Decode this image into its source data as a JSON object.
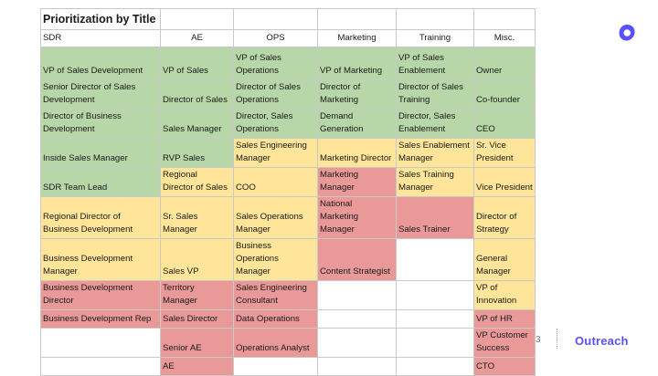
{
  "table": {
    "title": "Prioritization by Title",
    "headers": [
      "SDR",
      "AE",
      "OPS",
      "Marketing",
      "Training",
      "Misc."
    ],
    "header_align": [
      "left",
      "center",
      "center",
      "center",
      "center",
      "center"
    ],
    "row_heights": [
      35,
      30,
      30,
      30,
      30,
      37,
      45,
      30,
      19,
      30,
      19
    ],
    "rows": [
      [
        {
          "lines": [
            "VP of Sales Development"
          ],
          "color": "green"
        },
        {
          "lines": [
            "VP of Sales"
          ],
          "color": "green"
        },
        {
          "lines": [
            "VP of Sales",
            "Operations"
          ],
          "color": "green"
        },
        {
          "lines": [
            "VP of Marketing"
          ],
          "color": "green"
        },
        {
          "lines": [
            "VP of Sales",
            "Enablement"
          ],
          "color": "green"
        },
        {
          "lines": [
            "Owner"
          ],
          "color": "green"
        }
      ],
      [
        {
          "lines": [
            "Senior Director of Sales",
            "Development"
          ],
          "color": "green"
        },
        {
          "lines": [
            "Director of Sales"
          ],
          "color": "green"
        },
        {
          "lines": [
            "Director of Sales",
            "Operations"
          ],
          "color": "green"
        },
        {
          "lines": [
            "Director of",
            "Marketing"
          ],
          "color": "green"
        },
        {
          "lines": [
            "Director of Sales",
            "Training"
          ],
          "color": "green"
        },
        {
          "lines": [
            "Co-founder"
          ],
          "color": "green"
        }
      ],
      [
        {
          "lines": [
            "Director of Business",
            "Development"
          ],
          "color": "green"
        },
        {
          "lines": [
            "Sales Manager"
          ],
          "color": "green"
        },
        {
          "lines": [
            "Director, Sales",
            "Operations"
          ],
          "color": "green"
        },
        {
          "lines": [
            "Demand",
            "Generation"
          ],
          "color": "green"
        },
        {
          "lines": [
            "Director, Sales",
            "Enablement"
          ],
          "color": "green"
        },
        {
          "lines": [
            "CEO"
          ],
          "color": "green"
        }
      ],
      [
        {
          "lines": [
            "Inside Sales Manager"
          ],
          "color": "green"
        },
        {
          "lines": [
            "RVP Sales"
          ],
          "color": "green"
        },
        {
          "lines": [
            "Sales Engineering",
            "Manager"
          ],
          "color": "yellow"
        },
        {
          "lines": [
            "Marketing Director"
          ],
          "color": "yellow"
        },
        {
          "lines": [
            "Sales Enablement",
            "Manager"
          ],
          "color": "yellow"
        },
        {
          "lines": [
            "Sr. Vice",
            "President"
          ],
          "color": "yellow"
        }
      ],
      [
        {
          "lines": [
            "SDR Team Lead"
          ],
          "color": "green"
        },
        {
          "lines": [
            "Regional",
            "Director of Sales"
          ],
          "color": "yellow"
        },
        {
          "lines": [
            "COO"
          ],
          "color": "yellow"
        },
        {
          "lines": [
            "Marketing",
            "Manager"
          ],
          "color": "red"
        },
        {
          "lines": [
            "Sales Training",
            "Manager"
          ],
          "color": "yellow"
        },
        {
          "lines": [
            "Vice President"
          ],
          "color": "yellow"
        }
      ],
      [
        {
          "lines": [
            "Regional Director of",
            "Business Development"
          ],
          "color": "yellow"
        },
        {
          "lines": [
            "Sr. Sales",
            "Manager"
          ],
          "color": "yellow"
        },
        {
          "lines": [
            "Sales Operations",
            "Manager"
          ],
          "color": "yellow"
        },
        {
          "lines": [
            "National",
            "Marketing",
            "Manager"
          ],
          "color": "red"
        },
        {
          "lines": [
            "Sales Trainer"
          ],
          "color": "red"
        },
        {
          "lines": [
            "Director of",
            "Strategy"
          ],
          "color": "yellow"
        }
      ],
      [
        {
          "lines": [
            "Business Development",
            "Manager"
          ],
          "color": "yellow"
        },
        {
          "lines": [
            "Sales VP"
          ],
          "color": "yellow"
        },
        {
          "lines": [
            "Business",
            "Operations",
            "Manager"
          ],
          "color": "yellow"
        },
        {
          "lines": [
            "Content Strategist"
          ],
          "color": "red"
        },
        {
          "lines": [],
          "color": "white"
        },
        {
          "lines": [
            "General",
            "Manager"
          ],
          "color": "yellow"
        }
      ],
      [
        {
          "lines": [
            "Business Development",
            "Director"
          ],
          "color": "red"
        },
        {
          "lines": [
            "Territory",
            "Manager"
          ],
          "color": "red"
        },
        {
          "lines": [
            "Sales Engineering",
            "Consultant"
          ],
          "color": "red"
        },
        {
          "lines": [],
          "color": "white"
        },
        {
          "lines": [],
          "color": "white"
        },
        {
          "lines": [
            "VP of",
            "Innovation"
          ],
          "color": "yellow"
        }
      ],
      [
        {
          "lines": [
            "Business Development Rep"
          ],
          "color": "red"
        },
        {
          "lines": [
            "Sales Director"
          ],
          "color": "red"
        },
        {
          "lines": [
            "Data Operations"
          ],
          "color": "red"
        },
        {
          "lines": [],
          "color": "white"
        },
        {
          "lines": [],
          "color": "white"
        },
        {
          "lines": [
            "VP of HR"
          ],
          "color": "red"
        }
      ],
      [
        {
          "lines": [],
          "color": "white"
        },
        {
          "lines": [
            "Senior AE"
          ],
          "color": "red"
        },
        {
          "lines": [
            "Operations Analyst"
          ],
          "color": "red"
        },
        {
          "lines": [],
          "color": "white"
        },
        {
          "lines": [],
          "color": "white"
        },
        {
          "lines": [
            "VP Customer",
            "Success"
          ],
          "color": "red"
        }
      ],
      [
        {
          "lines": [],
          "color": "white"
        },
        {
          "lines": [
            "AE"
          ],
          "color": "red"
        },
        {
          "lines": [],
          "color": "white"
        },
        {
          "lines": [],
          "color": "white"
        },
        {
          "lines": [],
          "color": "white"
        },
        {
          "lines": [
            "CTO"
          ],
          "color": "red"
        }
      ]
    ]
  },
  "colors": {
    "green": "#b7d7a8",
    "yellow": "#ffe599",
    "red": "#ea9999",
    "white": "#ffffff",
    "brand": "#5951ff"
  },
  "footer": {
    "page_number": "3",
    "brand_name": "Outreach",
    "logo_icon": "outreach-logo-icon"
  }
}
